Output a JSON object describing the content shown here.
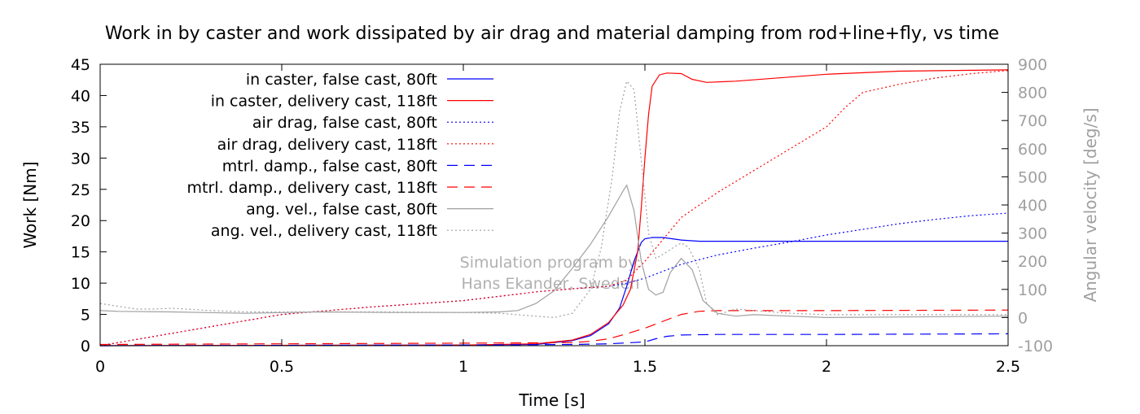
{
  "chart_data": {
    "type": "line",
    "title": "Work in by caster and work dissipated by air drag and material damping from rod+line+fly, vs time",
    "xlabel": "Time [s]",
    "ylabel": "Work [Nm]",
    "y2label": "Angular velocity [deg/s]",
    "xlim": [
      0,
      2.5
    ],
    "ylim": [
      0,
      45
    ],
    "y2lim": [
      -100,
      900
    ],
    "xticks": [
      0,
      0.5,
      1,
      1.5,
      2,
      2.5
    ],
    "xtick_labels": [
      "0",
      "0.5",
      "1",
      "1.5",
      "2",
      "2.5"
    ],
    "yticks": [
      0,
      5,
      10,
      15,
      20,
      25,
      30,
      35,
      40,
      45
    ],
    "ytick_labels": [
      "0",
      "5",
      "10",
      "15",
      "20",
      "25",
      "30",
      "35",
      "40",
      "45"
    ],
    "y2ticks": [
      -100,
      0,
      100,
      200,
      300,
      400,
      500,
      600,
      700,
      800,
      900
    ],
    "y2tick_labels": [
      "-100",
      "0",
      "100",
      "200",
      "300",
      "400",
      "500",
      "600",
      "700",
      "800",
      "900"
    ],
    "grid": false,
    "legend_position": "top-left",
    "watermark": [
      "Simulation program by:",
      "Hans Ekander, Sweden"
    ],
    "series": [
      {
        "name": "in caster, false cast, 80ft",
        "axis": "left",
        "color": "#0000ff",
        "dash": "solid",
        "points": [
          [
            0,
            0
          ],
          [
            0.5,
            0.05
          ],
          [
            1,
            0.1
          ],
          [
            1.2,
            0.2
          ],
          [
            1.3,
            0.8
          ],
          [
            1.35,
            1.6
          ],
          [
            1.4,
            3.5
          ],
          [
            1.43,
            6
          ],
          [
            1.45,
            9.5
          ],
          [
            1.47,
            13.5
          ],
          [
            1.49,
            16.5
          ],
          [
            1.5,
            17.1
          ],
          [
            1.52,
            17.3
          ],
          [
            1.55,
            17.3
          ],
          [
            1.6,
            16.9
          ],
          [
            1.65,
            16.7
          ],
          [
            1.8,
            16.7
          ],
          [
            2,
            16.7
          ],
          [
            2.5,
            16.7
          ]
        ]
      },
      {
        "name": "in caster, delivery cast, 118ft",
        "axis": "left",
        "color": "#ff0000",
        "dash": "solid",
        "points": [
          [
            0,
            0
          ],
          [
            1,
            0.1
          ],
          [
            1.2,
            0.3
          ],
          [
            1.3,
            0.9
          ],
          [
            1.35,
            1.8
          ],
          [
            1.4,
            3.7
          ],
          [
            1.44,
            6.5
          ],
          [
            1.46,
            9
          ],
          [
            1.48,
            15
          ],
          [
            1.49,
            22
          ],
          [
            1.5,
            30
          ],
          [
            1.51,
            37
          ],
          [
            1.52,
            41.5
          ],
          [
            1.54,
            43.3
          ],
          [
            1.56,
            43.6
          ],
          [
            1.6,
            43.5
          ],
          [
            1.63,
            42.6
          ],
          [
            1.67,
            42.1
          ],
          [
            1.75,
            42.3
          ],
          [
            2,
            43.4
          ],
          [
            2.2,
            43.9
          ],
          [
            2.5,
            44.1
          ]
        ]
      },
      {
        "name": "air drag, false cast, 80ft",
        "axis": "left",
        "color": "#0000ff",
        "dash": "dot",
        "points": [
          [
            0,
            0
          ],
          [
            0.25,
            2.5
          ],
          [
            0.5,
            5
          ],
          [
            0.75,
            6.2
          ],
          [
            1,
            7.2
          ],
          [
            1.2,
            8.6
          ],
          [
            1.3,
            9.1
          ],
          [
            1.4,
            9.5
          ],
          [
            1.45,
            10
          ],
          [
            1.5,
            10.8
          ],
          [
            1.55,
            11.9
          ],
          [
            1.6,
            13
          ],
          [
            1.7,
            14.5
          ],
          [
            1.8,
            15.6
          ],
          [
            1.9,
            16.6
          ],
          [
            2,
            17.7
          ],
          [
            2.1,
            18.6
          ],
          [
            2.2,
            19.5
          ],
          [
            2.3,
            20.2
          ],
          [
            2.4,
            20.8
          ],
          [
            2.5,
            21.2
          ]
        ]
      },
      {
        "name": "air drag, delivery cast, 118ft",
        "axis": "left",
        "color": "#ff0000",
        "dash": "dot",
        "points": [
          [
            0,
            0
          ],
          [
            0.25,
            2.5
          ],
          [
            0.5,
            5
          ],
          [
            0.75,
            6.2
          ],
          [
            1,
            7.2
          ],
          [
            1.2,
            8.6
          ],
          [
            1.3,
            9.1
          ],
          [
            1.4,
            9.5
          ],
          [
            1.45,
            10.5
          ],
          [
            1.5,
            13.5
          ],
          [
            1.55,
            17
          ],
          [
            1.6,
            20.5
          ],
          [
            1.7,
            24.5
          ],
          [
            1.8,
            28
          ],
          [
            1.9,
            31.5
          ],
          [
            2,
            35
          ],
          [
            2.05,
            38
          ],
          [
            2.1,
            40.5
          ],
          [
            2.2,
            41.8
          ],
          [
            2.3,
            42.8
          ],
          [
            2.4,
            43.5
          ],
          [
            2.5,
            44
          ]
        ]
      },
      {
        "name": "mtrl. damp., false cast, 80ft",
        "axis": "left",
        "color": "#0000ff",
        "dash": "dash",
        "points": [
          [
            0,
            0
          ],
          [
            1,
            0.1
          ],
          [
            1.3,
            0.2
          ],
          [
            1.4,
            0.3
          ],
          [
            1.5,
            0.6
          ],
          [
            1.53,
            1.1
          ],
          [
            1.56,
            1.5
          ],
          [
            1.6,
            1.7
          ],
          [
            1.7,
            1.8
          ],
          [
            2,
            1.8
          ],
          [
            2.5,
            1.9
          ]
        ]
      },
      {
        "name": "mtrl. damp., delivery cast, 118ft",
        "axis": "left",
        "color": "#ff0000",
        "dash": "dash",
        "points": [
          [
            0,
            0.2
          ],
          [
            0.5,
            0.3
          ],
          [
            1,
            0.4
          ],
          [
            1.3,
            0.5
          ],
          [
            1.35,
            0.7
          ],
          [
            1.4,
            1.1
          ],
          [
            1.45,
            1.9
          ],
          [
            1.5,
            2.8
          ],
          [
            1.55,
            3.9
          ],
          [
            1.6,
            5
          ],
          [
            1.65,
            5.5
          ],
          [
            1.7,
            5.6
          ],
          [
            2,
            5.6
          ],
          [
            2.5,
            5.7
          ]
        ]
      },
      {
        "name": "ang. vel., false cast, 80ft",
        "axis": "right",
        "color": "#a0a0a0",
        "dash": "solid",
        "points": [
          [
            0,
            25
          ],
          [
            0.05,
            22
          ],
          [
            0.2,
            20
          ],
          [
            0.4,
            15
          ],
          [
            0.6,
            20
          ],
          [
            0.8,
            18
          ],
          [
            1,
            18
          ],
          [
            1.1,
            20
          ],
          [
            1.15,
            25
          ],
          [
            1.2,
            50
          ],
          [
            1.25,
            95
          ],
          [
            1.3,
            175
          ],
          [
            1.35,
            260
          ],
          [
            1.4,
            360
          ],
          [
            1.44,
            450
          ],
          [
            1.45,
            470
          ],
          [
            1.47,
            380
          ],
          [
            1.49,
            200
          ],
          [
            1.51,
            100
          ],
          [
            1.53,
            80
          ],
          [
            1.55,
            90
          ],
          [
            1.57,
            160
          ],
          [
            1.6,
            210
          ],
          [
            1.63,
            170
          ],
          [
            1.66,
            60
          ],
          [
            1.7,
            15
          ],
          [
            1.75,
            5
          ],
          [
            1.8,
            10
          ],
          [
            1.9,
            5
          ],
          [
            2,
            0
          ],
          [
            2.5,
            5
          ]
        ]
      },
      {
        "name": "ang. vel., delivery cast, 118ft",
        "axis": "right",
        "color": "#a0a0a0",
        "dash": "dot",
        "points": [
          [
            0,
            50
          ],
          [
            0.05,
            40
          ],
          [
            0.1,
            30
          ],
          [
            0.15,
            30
          ],
          [
            0.2,
            33
          ],
          [
            0.3,
            25
          ],
          [
            0.4,
            20
          ],
          [
            0.5,
            20
          ],
          [
            0.6,
            20
          ],
          [
            0.8,
            20
          ],
          [
            1,
            18
          ],
          [
            1.1,
            15
          ],
          [
            1.2,
            5
          ],
          [
            1.25,
            0
          ],
          [
            1.3,
            15
          ],
          [
            1.35,
            100
          ],
          [
            1.38,
            250
          ],
          [
            1.41,
            500
          ],
          [
            1.43,
            730
          ],
          [
            1.45,
            840
          ],
          [
            1.47,
            810
          ],
          [
            1.49,
            560
          ],
          [
            1.51,
            300
          ],
          [
            1.53,
            210
          ],
          [
            1.55,
            225
          ],
          [
            1.58,
            250
          ],
          [
            1.6,
            265
          ],
          [
            1.62,
            250
          ],
          [
            1.65,
            170
          ],
          [
            1.67,
            50
          ],
          [
            1.7,
            10
          ],
          [
            1.75,
            30
          ],
          [
            1.8,
            25
          ],
          [
            1.9,
            15
          ],
          [
            2,
            10
          ],
          [
            2.5,
            10
          ]
        ]
      }
    ]
  }
}
